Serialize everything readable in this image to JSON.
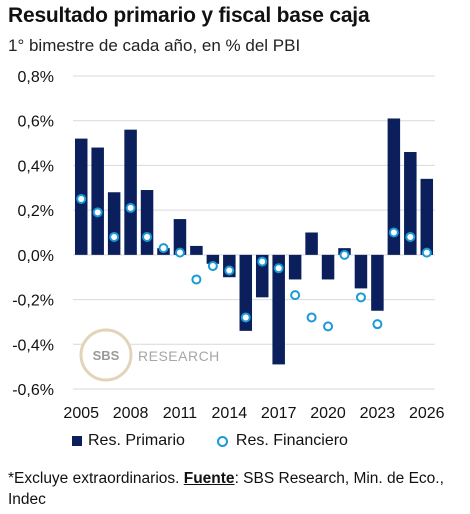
{
  "title": "Resultado primario y fiscal base caja",
  "subtitle": "1° bimestre de cada año, en % del PBI",
  "footnote": {
    "prefix": "*Excluye extraordinarios. ",
    "label": "Fuente",
    "suffix": ": SBS Research, Min. de Eco., Indec"
  },
  "watermark": {
    "logo_text": "SBS",
    "text": "RESEARCH"
  },
  "colors": {
    "primario": "#0a1f5c",
    "financiero": "#1a9ad7",
    "grid": "#d9d9d9"
  },
  "chart_data": {
    "type": "bar",
    "categories": [
      "2005",
      "2006",
      "2007",
      "2008",
      "2009",
      "2010",
      "2011",
      "2012",
      "2013",
      "2014",
      "2015",
      "2016",
      "2017",
      "2018",
      "2019",
      "2020",
      "2021",
      "2022",
      "2023",
      "2024",
      "2025",
      "2026"
    ],
    "x_tick_labels": [
      "2005",
      "2008",
      "2011",
      "2014",
      "2017",
      "2020",
      "2023",
      "2026"
    ],
    "y_tick_labels": [
      "0,8%",
      "0,6%",
      "0,4%",
      "0,2%",
      "0,0%",
      "-0,2%",
      "-0,4%",
      "-0,6%"
    ],
    "ylim": [
      -0.6,
      0.8
    ],
    "grid": "horizontal",
    "legend_position": "bottom",
    "series": [
      {
        "name": "Res. Primario",
        "type": "bar",
        "values": [
          0.52,
          0.48,
          0.28,
          0.56,
          0.29,
          0.03,
          0.16,
          0.04,
          -0.04,
          -0.1,
          -0.34,
          -0.19,
          -0.49,
          -0.11,
          0.1,
          -0.11,
          0.03,
          -0.15,
          -0.25,
          0.61,
          0.46,
          0.34
        ]
      },
      {
        "name": "Res. Financiero",
        "type": "scatter",
        "values": [
          0.25,
          0.19,
          0.08,
          0.21,
          0.08,
          0.03,
          0.01,
          -0.11,
          -0.05,
          -0.07,
          -0.28,
          -0.03,
          -0.06,
          -0.18,
          -0.28,
          -0.32,
          0.0,
          -0.19,
          -0.31,
          0.1,
          0.08,
          0.01
        ]
      }
    ]
  }
}
